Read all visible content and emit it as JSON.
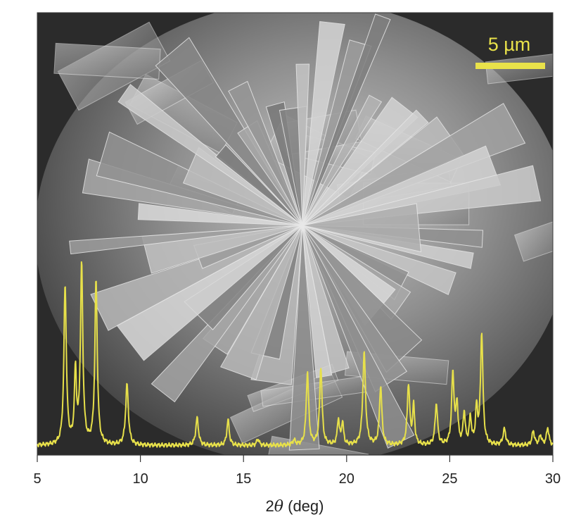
{
  "colors": {
    "trace": "#e7e04a",
    "scale_bar": "#e9e24a",
    "axis": "#333333",
    "text": "#222222",
    "micrograph_dark": "#2a2a2a",
    "micrograph_light": "#d9d9d9"
  },
  "scale_bar": {
    "label": "5 µm"
  },
  "chart_data": {
    "type": "line",
    "title": "",
    "xlabel_prefix": "2",
    "xlabel_symbol": "θ",
    "xlabel_suffix": " (deg)",
    "ylabel": "",
    "xlim": [
      5,
      30
    ],
    "ylim": [
      0,
      100
    ],
    "xticks": [
      5,
      10,
      15,
      20,
      25,
      30
    ],
    "xtick_labels": [
      "5",
      "10",
      "15",
      "20",
      "25",
      "30"
    ],
    "grid": false,
    "legend": "none",
    "background": "SEM micrograph of layered plate-like crystals",
    "series": [
      {
        "baseline": 2,
        "peaks": [
          {
            "x": 6.35,
            "y": 100,
            "w": 0.07
          },
          {
            "x": 6.85,
            "y": 45,
            "w": 0.06
          },
          {
            "x": 7.15,
            "y": 112,
            "w": 0.07
          },
          {
            "x": 7.85,
            "y": 103,
            "w": 0.07
          },
          {
            "x": 9.35,
            "y": 38,
            "w": 0.08
          },
          {
            "x": 12.75,
            "y": 17,
            "w": 0.08
          },
          {
            "x": 14.25,
            "y": 16,
            "w": 0.07
          },
          {
            "x": 15.7,
            "y": 4,
            "w": 0.07
          },
          {
            "x": 17.45,
            "y": 3,
            "w": 0.08
          },
          {
            "x": 18.1,
            "y": 46,
            "w": 0.07
          },
          {
            "x": 18.75,
            "y": 49,
            "w": 0.07
          },
          {
            "x": 19.6,
            "y": 16,
            "w": 0.06
          },
          {
            "x": 19.8,
            "y": 14,
            "w": 0.06
          },
          {
            "x": 20.85,
            "y": 58,
            "w": 0.08
          },
          {
            "x": 21.65,
            "y": 37,
            "w": 0.07
          },
          {
            "x": 23.0,
            "y": 38,
            "w": 0.07
          },
          {
            "x": 23.25,
            "y": 24,
            "w": 0.06
          },
          {
            "x": 24.35,
            "y": 26,
            "w": 0.07
          },
          {
            "x": 25.15,
            "y": 45,
            "w": 0.07
          },
          {
            "x": 25.35,
            "y": 25,
            "w": 0.06
          },
          {
            "x": 25.7,
            "y": 20,
            "w": 0.06
          },
          {
            "x": 26.0,
            "y": 17,
            "w": 0.06
          },
          {
            "x": 26.3,
            "y": 22,
            "w": 0.06
          },
          {
            "x": 26.55,
            "y": 70,
            "w": 0.07
          },
          {
            "x": 27.65,
            "y": 10,
            "w": 0.08
          },
          {
            "x": 29.05,
            "y": 9,
            "w": 0.07
          },
          {
            "x": 29.4,
            "y": 6,
            "w": 0.07
          },
          {
            "x": 29.75,
            "y": 11,
            "w": 0.07
          }
        ]
      }
    ]
  }
}
